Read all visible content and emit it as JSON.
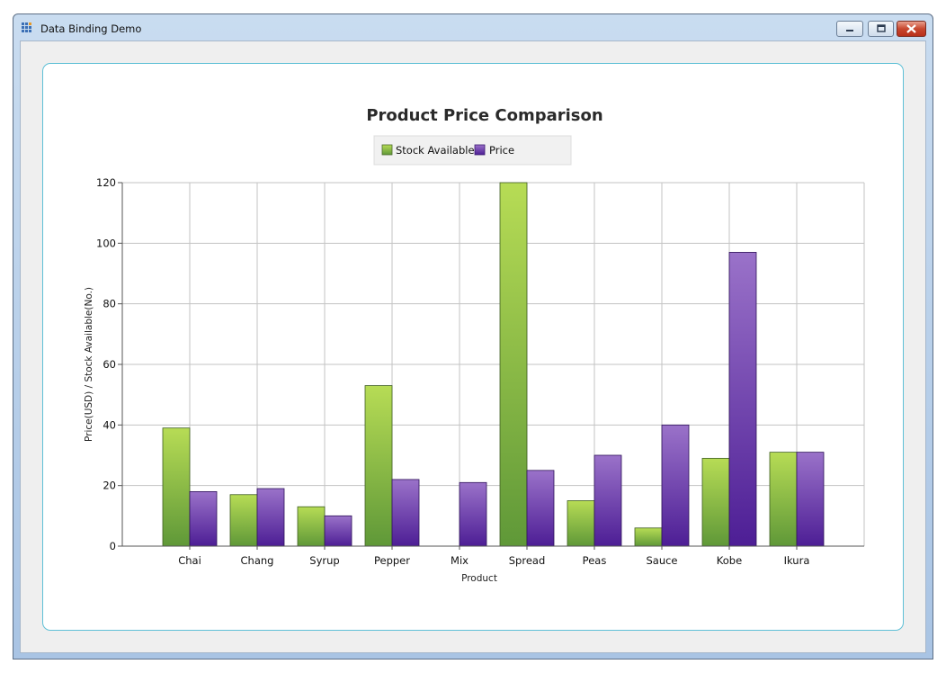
{
  "window": {
    "title": "Data Binding Demo"
  },
  "colors": {
    "stock_light": "#b7dc55",
    "stock_dark": "#5f9838",
    "price_light": "#9a72c9",
    "price_dark": "#4d1e95",
    "panel_border": "#5fc0d6",
    "grid": "#c3c3c3"
  },
  "chart_data": {
    "type": "bar",
    "title": "Product Price Comparison",
    "xlabel": "Product",
    "ylabel": "Price(USD) / Stock Available(No.)",
    "ylim": [
      0,
      120
    ],
    "yticks": [
      0,
      20,
      40,
      60,
      80,
      100,
      120
    ],
    "grid": true,
    "legend_position": "top-center",
    "categories": [
      "Chai",
      "Chang",
      "Syrup",
      "Pepper",
      "Mix",
      "Spread",
      "Peas",
      "Sauce",
      "Kobe",
      "Ikura"
    ],
    "series": [
      {
        "name": "Stock Available",
        "values": [
          39,
          17,
          13,
          53,
          0,
          120,
          15,
          6,
          29,
          31
        ]
      },
      {
        "name": "Price",
        "values": [
          18,
          19,
          10,
          22,
          21,
          25,
          30,
          40,
          97,
          31
        ]
      }
    ]
  }
}
